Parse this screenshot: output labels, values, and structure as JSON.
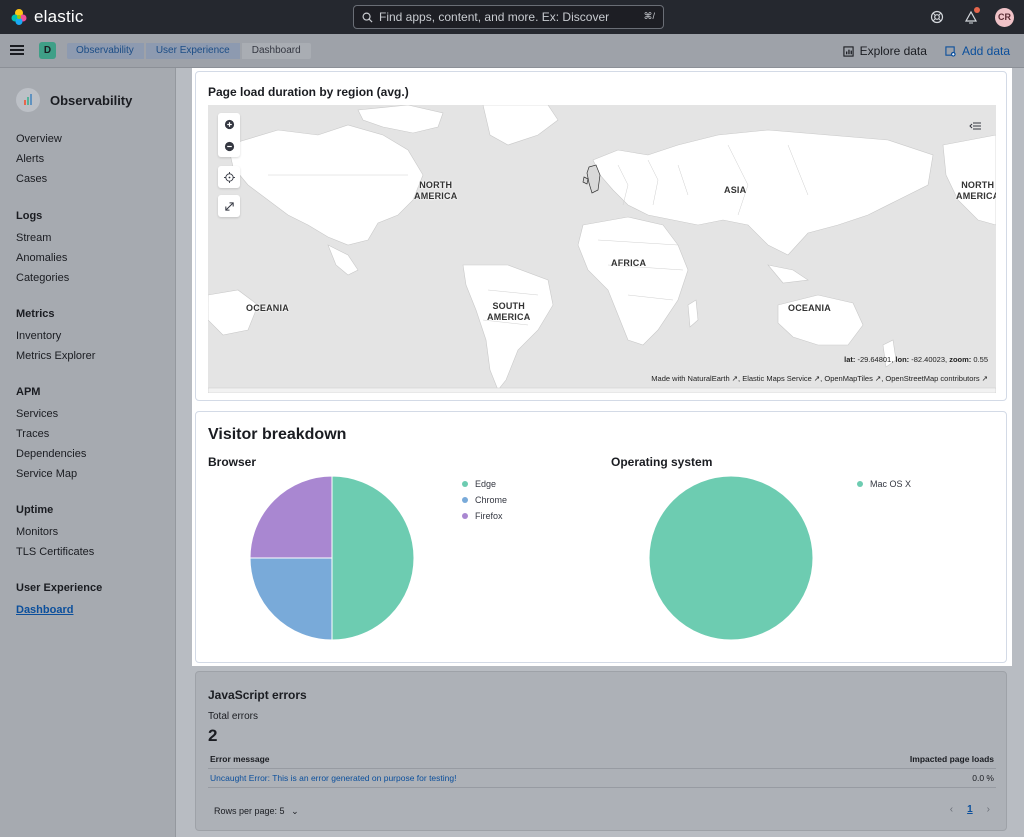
{
  "header": {
    "brand": "elastic",
    "search_placeholder": "Find apps, content, and more. Ex: Discover",
    "search_shortcut": "⌘/",
    "avatar_initials": "CR"
  },
  "breadcrumbs": {
    "space_initial": "D",
    "items": [
      "Observability",
      "User Experience",
      "Dashboard"
    ],
    "explore_label": "Explore data",
    "add_data_label": "Add data"
  },
  "sidebar": {
    "title": "Observability",
    "top_items": [
      "Overview",
      "Alerts",
      "Cases"
    ],
    "groups": [
      {
        "title": "Logs",
        "items": [
          "Stream",
          "Anomalies",
          "Categories"
        ]
      },
      {
        "title": "Metrics",
        "items": [
          "Inventory",
          "Metrics Explorer"
        ]
      },
      {
        "title": "APM",
        "items": [
          "Services",
          "Traces",
          "Dependencies",
          "Service Map"
        ]
      },
      {
        "title": "Uptime",
        "items": [
          "Monitors",
          "TLS Certificates"
        ]
      },
      {
        "title": "User Experience",
        "items": [
          "Dashboard"
        ]
      }
    ],
    "active_item": "Dashboard"
  },
  "map_panel": {
    "title": "Page load duration by region (avg.)",
    "labels": {
      "north_america_left": "NORTH\nAMERICA",
      "north_america_right": "NORTH\nAMERICA",
      "asia": "ASIA",
      "africa": "AFRICA",
      "south_america": "SOUTH\nAMERICA",
      "oceania_left": "OCEANIA",
      "oceania_right": "OCEANIA"
    },
    "coords": {
      "lat_label": "lat:",
      "lat": "-29.64801",
      "lon_label": "lon:",
      "lon": "-82.40023",
      "zoom_label": "zoom:",
      "zoom": "0.55"
    },
    "attribution": [
      "Made with NaturalEarth",
      "Elastic Maps Service",
      "OpenMapTiles",
      "OpenStreetMap contributors"
    ]
  },
  "visitor_panel": {
    "title": "Visitor breakdown",
    "browser": {
      "title": "Browser",
      "slices": [
        {
          "name": "Edge",
          "value": 50,
          "color": "#6dccb1"
        },
        {
          "name": "Chrome",
          "value": 25,
          "color": "#79aad9"
        },
        {
          "name": "Firefox",
          "value": 25,
          "color": "#a987d1"
        }
      ]
    },
    "os": {
      "title": "Operating system",
      "slices": [
        {
          "name": "Mac OS X",
          "value": 100,
          "color": "#6dccb1"
        }
      ]
    }
  },
  "js_errors": {
    "title": "JavaScript errors",
    "total_label": "Total errors",
    "total": "2",
    "columns": [
      "Error message",
      "Impacted page loads"
    ],
    "rows": [
      {
        "message": "Uncaught Error: This is an error generated on purpose for testing!",
        "impact": "0.0 %"
      }
    ],
    "rows_per_page": "Rows per page: 5",
    "page": "1"
  },
  "colors": {
    "header_bg": "#25282f",
    "accent": "#0b4f9c",
    "edge": "#6dccb1",
    "chrome": "#79aad9",
    "firefox": "#a987d1"
  }
}
